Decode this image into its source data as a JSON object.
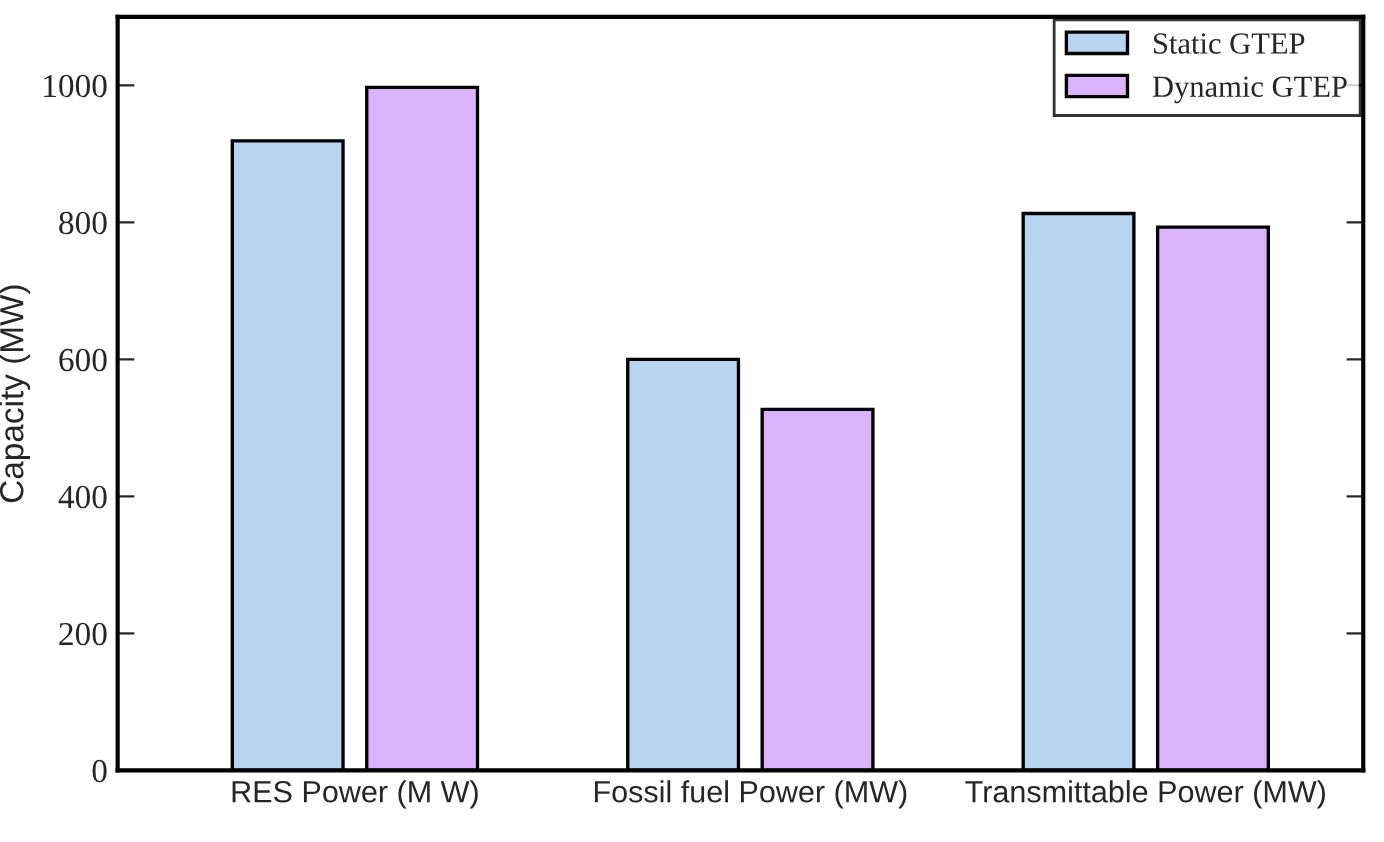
{
  "chart_data": {
    "type": "bar",
    "ylabel": "Capacity (MW)",
    "categories": [
      "RES Power (M W)",
      "Fossil fuel Power (MW)",
      "Transmittable Power (MW)"
    ],
    "series": [
      {
        "name": "Static GTEP",
        "color": "#b9d4f1",
        "values": [
          919,
          600,
          813
        ]
      },
      {
        "name": "Dynamic GTEP",
        "color": "#dab3fc",
        "values": [
          997,
          527,
          793
        ]
      }
    ],
    "ylim": [
      0,
      1100
    ],
    "yticks": [
      0,
      200,
      400,
      600,
      800,
      1000
    ],
    "grid": false,
    "legend": "top right"
  }
}
